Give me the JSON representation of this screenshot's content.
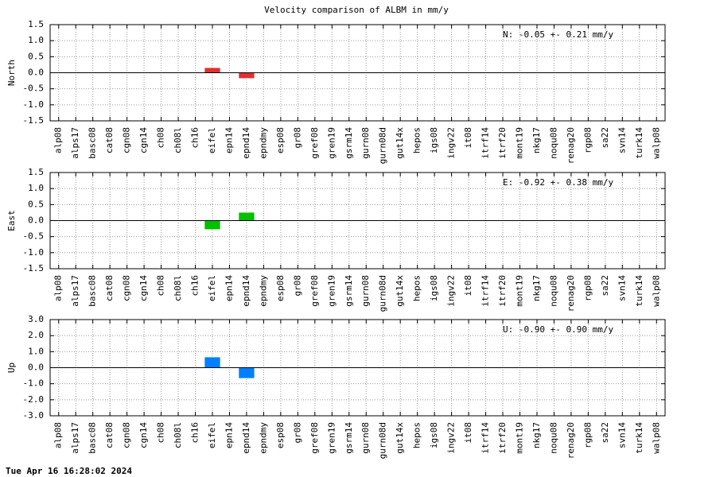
{
  "title": "Velocity comparison of ALBM in mm/y",
  "timestamp": "Tue Apr 16 16:28:02 2024",
  "chart_data": [
    {
      "type": "bar",
      "ylabel": "North",
      "annotation": "N:  -0.05 +-  0.21 mm/y",
      "color": "#e03030",
      "grid": true,
      "categories": [
        "alp08",
        "alps17",
        "basc08",
        "cat08",
        "cgn08",
        "cgn14",
        "ch08",
        "ch08l",
        "ch16",
        "eifel",
        "epn14",
        "epnd14",
        "epndmy",
        "esp08",
        "gr08",
        "gref08",
        "gren19",
        "gsrm14",
        "gurn08",
        "gurn08d",
        "gut14x",
        "hepos",
        "igs08",
        "ingv22",
        "it08",
        "itrf14",
        "itrf20",
        "mont19",
        "nkg17",
        "noqu08",
        "renag20",
        "rgp08",
        "sa22",
        "svn14",
        "turk14",
        "walp08"
      ],
      "values": [
        null,
        null,
        null,
        null,
        null,
        null,
        null,
        null,
        null,
        0.15,
        null,
        -0.17,
        null,
        null,
        null,
        null,
        null,
        null,
        null,
        null,
        null,
        null,
        null,
        null,
        null,
        null,
        null,
        null,
        null,
        null,
        null,
        null,
        null,
        null,
        null,
        null
      ],
      "ylim": [
        -1.5,
        1.5
      ],
      "yticks": [
        -1.5,
        {
          "value": -1.0,
          "label": "-1.0"
        },
        -0.5,
        {
          "value": 0,
          "label": "0.0"
        },
        0.5,
        {
          "value": 1.0,
          "label": "1.0"
        },
        1.5
      ]
    },
    {
      "type": "bar",
      "ylabel": "East",
      "annotation": "E:  -0.92 +-  0.38 mm/y",
      "color": "#00c000",
      "grid": true,
      "categories": [
        "alp08",
        "alps17",
        "basc08",
        "cat08",
        "cgn08",
        "cgn14",
        "ch08",
        "ch08l",
        "ch16",
        "eifel",
        "epn14",
        "epnd14",
        "epndmy",
        "esp08",
        "gr08",
        "gref08",
        "gren19",
        "gsrm14",
        "gurn08",
        "gurn08d",
        "gut14x",
        "hepos",
        "igs08",
        "ingv22",
        "it08",
        "itrf14",
        "itrf20",
        "mont19",
        "nkg17",
        "noqu08",
        "renag20",
        "rgp08",
        "sa22",
        "svn14",
        "turk14",
        "walp08"
      ],
      "values": [
        null,
        null,
        null,
        null,
        null,
        null,
        null,
        null,
        null,
        -0.27,
        null,
        0.25,
        null,
        null,
        null,
        null,
        null,
        null,
        null,
        null,
        null,
        null,
        null,
        null,
        null,
        null,
        null,
        null,
        null,
        null,
        null,
        null,
        null,
        null,
        null,
        null
      ],
      "ylim": [
        -1.5,
        1.5
      ],
      "yticks": [
        -1.5,
        {
          "value": -1.0,
          "label": "-1.0"
        },
        -0.5,
        {
          "value": 0,
          "label": "0.0"
        },
        0.5,
        {
          "value": 1.0,
          "label": "1.0"
        },
        1.5
      ]
    },
    {
      "type": "bar",
      "ylabel": "Up",
      "annotation": "U:  -0.90 +-  0.90 mm/y",
      "color": "#0080ff",
      "grid": true,
      "categories": [
        "alp08",
        "alps17",
        "basc08",
        "cat08",
        "cgn08",
        "cgn14",
        "ch08",
        "ch08l",
        "ch16",
        "eifel",
        "epn14",
        "epnd14",
        "epndmy",
        "esp08",
        "gr08",
        "gref08",
        "gren19",
        "gsrm14",
        "gurn08",
        "gurn08d",
        "gut14x",
        "hepos",
        "igs08",
        "ingv22",
        "it08",
        "itrf14",
        "itrf20",
        "mont19",
        "nkg17",
        "noqu08",
        "renag20",
        "rgp08",
        "sa22",
        "svn14",
        "turk14",
        "walp08"
      ],
      "values": [
        null,
        null,
        null,
        null,
        null,
        null,
        null,
        null,
        null,
        0.65,
        null,
        -0.65,
        null,
        null,
        null,
        null,
        null,
        null,
        null,
        null,
        null,
        null,
        null,
        null,
        null,
        null,
        null,
        null,
        null,
        null,
        null,
        null,
        null,
        null,
        null,
        null
      ],
      "ylim": [
        -3,
        3
      ],
      "yticks": [
        {
          "value": -3,
          "label": "-3.0"
        },
        {
          "value": -2,
          "label": "-2.0"
        },
        {
          "value": -1,
          "label": "-1.0"
        },
        {
          "value": 0,
          "label": "0.0"
        },
        {
          "value": 1,
          "label": "1.0"
        },
        {
          "value": 2,
          "label": "2.0"
        },
        {
          "value": 3,
          "label": "3.0"
        }
      ]
    }
  ]
}
